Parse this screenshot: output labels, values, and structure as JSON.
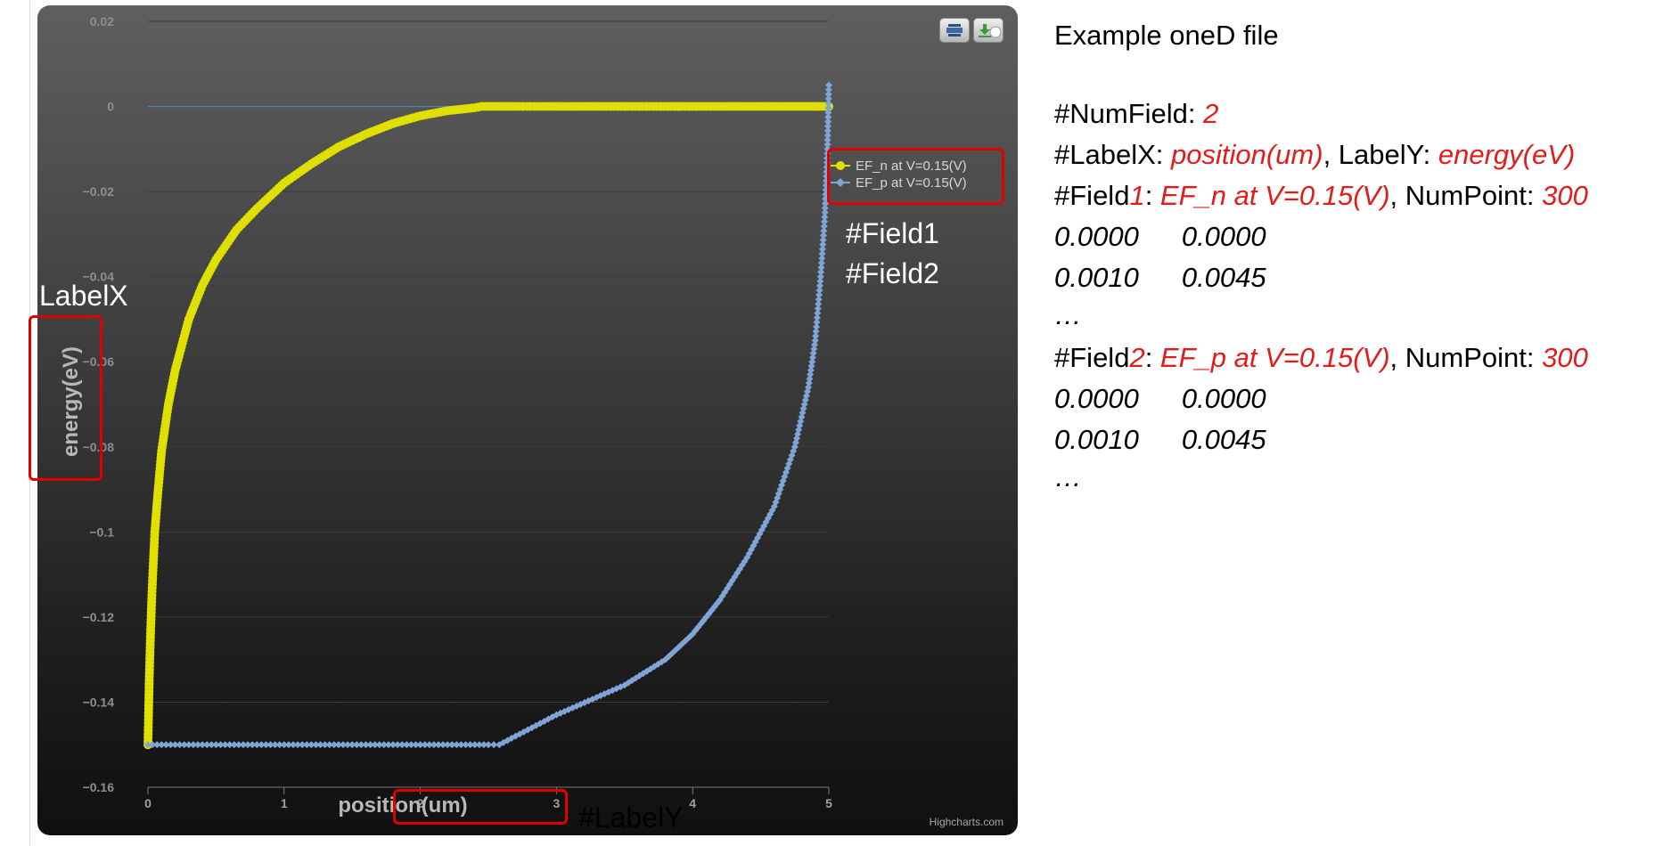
{
  "chart_data": {
    "type": "line",
    "xlabel": "position(um)",
    "ylabel": "energy(eV)",
    "xlim": [
      0,
      5
    ],
    "ylim": [
      -0.16,
      0.02
    ],
    "x_ticks": [
      "0",
      "1",
      "2",
      "3",
      "4",
      "5"
    ],
    "y_ticks": [
      "0.02",
      "0",
      "−0.02",
      "−0.04",
      "−0.06",
      "−0.08",
      "−0.1",
      "−0.12",
      "−0.14",
      "−0.16"
    ],
    "grid": "horizontal",
    "legend_position": "right",
    "series": [
      {
        "name": "EF_n at V=0.15(V)",
        "color": "#e0e000",
        "marker": "circle",
        "x": [
          0,
          0.01,
          0.02,
          0.03,
          0.05,
          0.075,
          0.1,
          0.15,
          0.2,
          0.3,
          0.4,
          0.5,
          0.65,
          0.8,
          1.0,
          1.2,
          1.4,
          1.6,
          1.8,
          2.0,
          2.2,
          2.4,
          2.45,
          2.7,
          3.0,
          3.5,
          4.0,
          4.5,
          5.0
        ],
        "y": [
          -0.15,
          -0.134,
          -0.123,
          -0.114,
          -0.1,
          -0.09,
          -0.081,
          -0.07,
          -0.062,
          -0.05,
          -0.042,
          -0.036,
          -0.029,
          -0.024,
          -0.018,
          -0.0135,
          -0.0095,
          -0.0065,
          -0.004,
          -0.0022,
          -0.001,
          -0.0003,
          0,
          0,
          0,
          0,
          0,
          0,
          0
        ]
      },
      {
        "name": "EF_p at V=0.15(V)",
        "color": "#7fa5d6",
        "marker": "diamond",
        "x": [
          0,
          0.5,
          1.0,
          1.5,
          2.0,
          2.5,
          2.58,
          3.0,
          3.5,
          3.8,
          4.0,
          4.2,
          4.4,
          4.6,
          4.75,
          4.85,
          4.9,
          4.94,
          4.97,
          4.99,
          5.0
        ],
        "y": [
          -0.15,
          -0.15,
          -0.15,
          -0.15,
          -0.15,
          -0.15,
          -0.15,
          -0.143,
          -0.136,
          -0.13,
          -0.124,
          -0.116,
          -0.106,
          -0.094,
          -0.08,
          -0.066,
          -0.055,
          -0.04,
          -0.026,
          -0.01,
          0.005
        ]
      }
    ],
    "reference_line": {
      "y": 0,
      "color": "#4f7fb8"
    },
    "credits": "Highcharts.com"
  },
  "annotations": {
    "field1": "#Field1",
    "field2": "#Field2",
    "label_x_tag": "LabelX",
    "label_y_tag": "#LabelY"
  },
  "notes": {
    "title": "Example oneD file",
    "numfield_key": "#NumField: ",
    "numfield_val": "2",
    "labelx_key": "#LabelX: ",
    "labelx_val": "position(um)",
    "labely_key": ", LabelY: ",
    "labely_val": "energy(eV)",
    "field1_key": "#Field",
    "field1_num": "1",
    "field1_colon": ": ",
    "field1_name": "EF_n at V=0.15(V)",
    "field1_np_key": ", NumPoint: ",
    "field1_np_val": "300",
    "f1_r1_a": "0.0000",
    "f1_r1_b": "0.0000",
    "f1_r2_a": "0.0010",
    "f1_r2_b": "0.0045",
    "f1_ellipsis": "…",
    "field2_key": "#Field",
    "field2_num": "2",
    "field2_colon": ": ",
    "field2_name": "EF_p at V=0.15(V)",
    "field2_np_key": ", NumPoint: ",
    "field2_np_val": "300",
    "f2_r1_a": "0.0000",
    "f2_r1_b": "0.0000",
    "f2_r2_a": "0.0010",
    "f2_r2_b": "0.0045",
    "f2_ellipsis": "…"
  }
}
